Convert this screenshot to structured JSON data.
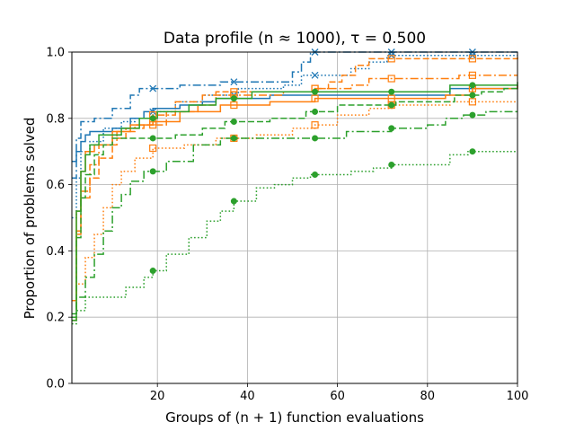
{
  "chart_data": {
    "type": "line",
    "title": "Data profile (n ≈ 1000), τ = 0.500",
    "xlabel": "Groups of (n + 1) function evaluations",
    "ylabel": "Proportion of problems solved",
    "xlim": [
      1,
      100
    ],
    "ylim": [
      0.0,
      1.0
    ],
    "xticks": [
      20,
      40,
      60,
      80,
      100
    ],
    "xtick_labels": [
      "20",
      "40",
      "60",
      "80",
      "100"
    ],
    "yticks": [
      0.0,
      0.2,
      0.4,
      0.6,
      0.8,
      1.0
    ],
    "ytick_labels": [
      "0.0",
      "0.2",
      "0.4",
      "0.6",
      "0.8",
      "1.0"
    ],
    "grid": true,
    "series": [
      {
        "name": "blue-solid",
        "color": "#1f77b4",
        "dash": "solid",
        "marker": "none",
        "points": [
          [
            1,
            0.67
          ],
          [
            2,
            0.7
          ],
          [
            3,
            0.73
          ],
          [
            4,
            0.75
          ],
          [
            5,
            0.76
          ],
          [
            10,
            0.77
          ],
          [
            14,
            0.8
          ],
          [
            17,
            0.82
          ],
          [
            19,
            0.83
          ],
          [
            25,
            0.84
          ],
          [
            30,
            0.85
          ],
          [
            33,
            0.86
          ],
          [
            45,
            0.87
          ],
          [
            85,
            0.89
          ],
          [
            100,
            0.9
          ]
        ]
      },
      {
        "name": "blue-dashdot",
        "color": "#1f77b4",
        "dash": "dashdot",
        "marker": "x",
        "points": [
          [
            1,
            0.62
          ],
          [
            2,
            0.74
          ],
          [
            3,
            0.79
          ],
          [
            6,
            0.8
          ],
          [
            10,
            0.83
          ],
          [
            14,
            0.87
          ],
          [
            16,
            0.89
          ],
          [
            25,
            0.9
          ],
          [
            34,
            0.91
          ],
          [
            48,
            0.91
          ],
          [
            50,
            0.94
          ],
          [
            52,
            0.97
          ],
          [
            54,
            1.0
          ],
          [
            100,
            1.0
          ]
        ]
      },
      {
        "name": "blue-dotted",
        "color": "#1f77b4",
        "dash": "dotted",
        "marker": "x",
        "points": [
          [
            1,
            0.5
          ],
          [
            2,
            0.62
          ],
          [
            3,
            0.7
          ],
          [
            5,
            0.73
          ],
          [
            8,
            0.77
          ],
          [
            12,
            0.79
          ],
          [
            15,
            0.8
          ],
          [
            19,
            0.82
          ],
          [
            24,
            0.85
          ],
          [
            30,
            0.87
          ],
          [
            38,
            0.89
          ],
          [
            48,
            0.9
          ],
          [
            52,
            0.93
          ],
          [
            63,
            0.95
          ],
          [
            67,
            0.97
          ],
          [
            71,
            0.99
          ],
          [
            100,
            0.99
          ]
        ]
      },
      {
        "name": "orange-solid",
        "color": "#ff7f0e",
        "dash": "solid",
        "marker": "square",
        "points": [
          [
            1,
            0.25
          ],
          [
            2,
            0.52
          ],
          [
            3,
            0.64
          ],
          [
            4,
            0.7
          ],
          [
            6,
            0.72
          ],
          [
            10,
            0.76
          ],
          [
            14,
            0.78
          ],
          [
            19,
            0.79
          ],
          [
            25,
            0.82
          ],
          [
            34,
            0.84
          ],
          [
            45,
            0.85
          ],
          [
            55,
            0.86
          ],
          [
            60,
            0.86
          ],
          [
            72,
            0.86
          ],
          [
            84,
            0.87
          ],
          [
            90,
            0.89
          ],
          [
            100,
            0.9
          ]
        ]
      },
      {
        "name": "orange-dashdot",
        "color": "#ff7f0e",
        "dash": "dashdot",
        "marker": "square",
        "points": [
          [
            1,
            0.19
          ],
          [
            2,
            0.45
          ],
          [
            3,
            0.58
          ],
          [
            5,
            0.66
          ],
          [
            7,
            0.72
          ],
          [
            11,
            0.76
          ],
          [
            15,
            0.78
          ],
          [
            19,
            0.81
          ],
          [
            24,
            0.85
          ],
          [
            30,
            0.87
          ],
          [
            37,
            0.87
          ],
          [
            48,
            0.88
          ],
          [
            55,
            0.89
          ],
          [
            63,
            0.9
          ],
          [
            67,
            0.92
          ],
          [
            84,
            0.92
          ],
          [
            87,
            0.93
          ],
          [
            92,
            0.93
          ],
          [
            100,
            0.93
          ]
        ]
      },
      {
        "name": "orange-dashed",
        "color": "#ff7f0e",
        "dash": "dashed",
        "marker": "square",
        "points": [
          [
            1,
            0.25
          ],
          [
            2,
            0.46
          ],
          [
            3,
            0.56
          ],
          [
            5,
            0.62
          ],
          [
            7,
            0.68
          ],
          [
            10,
            0.74
          ],
          [
            13,
            0.77
          ],
          [
            17,
            0.78
          ],
          [
            22,
            0.82
          ],
          [
            29,
            0.84
          ],
          [
            33,
            0.88
          ],
          [
            44,
            0.88
          ],
          [
            55,
            0.89
          ],
          [
            58,
            0.91
          ],
          [
            61,
            0.93
          ],
          [
            64,
            0.96
          ],
          [
            67,
            0.98
          ],
          [
            100,
            0.99
          ]
        ]
      },
      {
        "name": "orange-dotted",
        "color": "#ff7f0e",
        "dash": "dotted",
        "marker": "square",
        "points": [
          [
            1,
            0.2
          ],
          [
            2,
            0.3
          ],
          [
            4,
            0.38
          ],
          [
            6,
            0.45
          ],
          [
            8,
            0.53
          ],
          [
            10,
            0.6
          ],
          [
            12,
            0.64
          ],
          [
            15,
            0.68
          ],
          [
            19,
            0.71
          ],
          [
            26,
            0.72
          ],
          [
            33,
            0.74
          ],
          [
            42,
            0.75
          ],
          [
            50,
            0.77
          ],
          [
            55,
            0.78
          ],
          [
            60,
            0.81
          ],
          [
            67,
            0.83
          ],
          [
            72,
            0.84
          ],
          [
            85,
            0.85
          ],
          [
            100,
            0.85
          ]
        ]
      },
      {
        "name": "green-solid",
        "color": "#2ca02c",
        "dash": "solid",
        "marker": "circle",
        "points": [
          [
            1,
            0.2
          ],
          [
            2,
            0.52
          ],
          [
            3,
            0.64
          ],
          [
            4,
            0.69
          ],
          [
            5,
            0.72
          ],
          [
            7,
            0.75
          ],
          [
            12,
            0.77
          ],
          [
            16,
            0.8
          ],
          [
            20,
            0.82
          ],
          [
            27,
            0.84
          ],
          [
            33,
            0.86
          ],
          [
            41,
            0.88
          ],
          [
            72,
            0.88
          ],
          [
            85,
            0.9
          ],
          [
            100,
            0.91
          ]
        ]
      },
      {
        "name": "green-dashdot",
        "color": "#2ca02c",
        "dash": "dashdot",
        "marker": "circle",
        "points": [
          [
            1,
            0.19
          ],
          [
            2,
            0.26
          ],
          [
            4,
            0.32
          ],
          [
            6,
            0.39
          ],
          [
            8,
            0.46
          ],
          [
            10,
            0.53
          ],
          [
            12,
            0.57
          ],
          [
            14,
            0.61
          ],
          [
            17,
            0.64
          ],
          [
            22,
            0.67
          ],
          [
            28,
            0.72
          ],
          [
            34,
            0.74
          ],
          [
            55,
            0.74
          ],
          [
            62,
            0.76
          ],
          [
            72,
            0.77
          ],
          [
            80,
            0.78
          ],
          [
            84,
            0.8
          ],
          [
            88,
            0.81
          ],
          [
            93,
            0.82
          ],
          [
            100,
            0.82
          ]
        ]
      },
      {
        "name": "green-dashed",
        "color": "#2ca02c",
        "dash": "dashed",
        "marker": "circle",
        "points": [
          [
            1,
            0.21
          ],
          [
            2,
            0.44
          ],
          [
            3,
            0.56
          ],
          [
            4,
            0.63
          ],
          [
            6,
            0.69
          ],
          [
            8,
            0.72
          ],
          [
            10,
            0.74
          ],
          [
            24,
            0.75
          ],
          [
            30,
            0.77
          ],
          [
            35,
            0.79
          ],
          [
            45,
            0.8
          ],
          [
            53,
            0.82
          ],
          [
            60,
            0.84
          ],
          [
            73,
            0.85
          ],
          [
            86,
            0.87
          ],
          [
            92,
            0.88
          ],
          [
            97,
            0.89
          ],
          [
            100,
            0.89
          ]
        ]
      },
      {
        "name": "green-dotted",
        "color": "#2ca02c",
        "dash": "dotted",
        "marker": "circle",
        "points": [
          [
            1,
            0.18
          ],
          [
            2,
            0.22
          ],
          [
            4,
            0.26
          ],
          [
            7,
            0.26
          ],
          [
            11,
            0.26
          ],
          [
            13,
            0.29
          ],
          [
            17,
            0.32
          ],
          [
            19,
            0.34
          ],
          [
            22,
            0.39
          ],
          [
            27,
            0.44
          ],
          [
            31,
            0.49
          ],
          [
            34,
            0.52
          ],
          [
            37,
            0.55
          ],
          [
            42,
            0.59
          ],
          [
            46,
            0.6
          ],
          [
            50,
            0.62
          ],
          [
            54,
            0.63
          ],
          [
            63,
            0.64
          ],
          [
            68,
            0.65
          ],
          [
            72,
            0.66
          ],
          [
            83,
            0.66
          ],
          [
            85,
            0.69
          ],
          [
            89,
            0.7
          ],
          [
            100,
            0.7
          ]
        ]
      }
    ]
  }
}
